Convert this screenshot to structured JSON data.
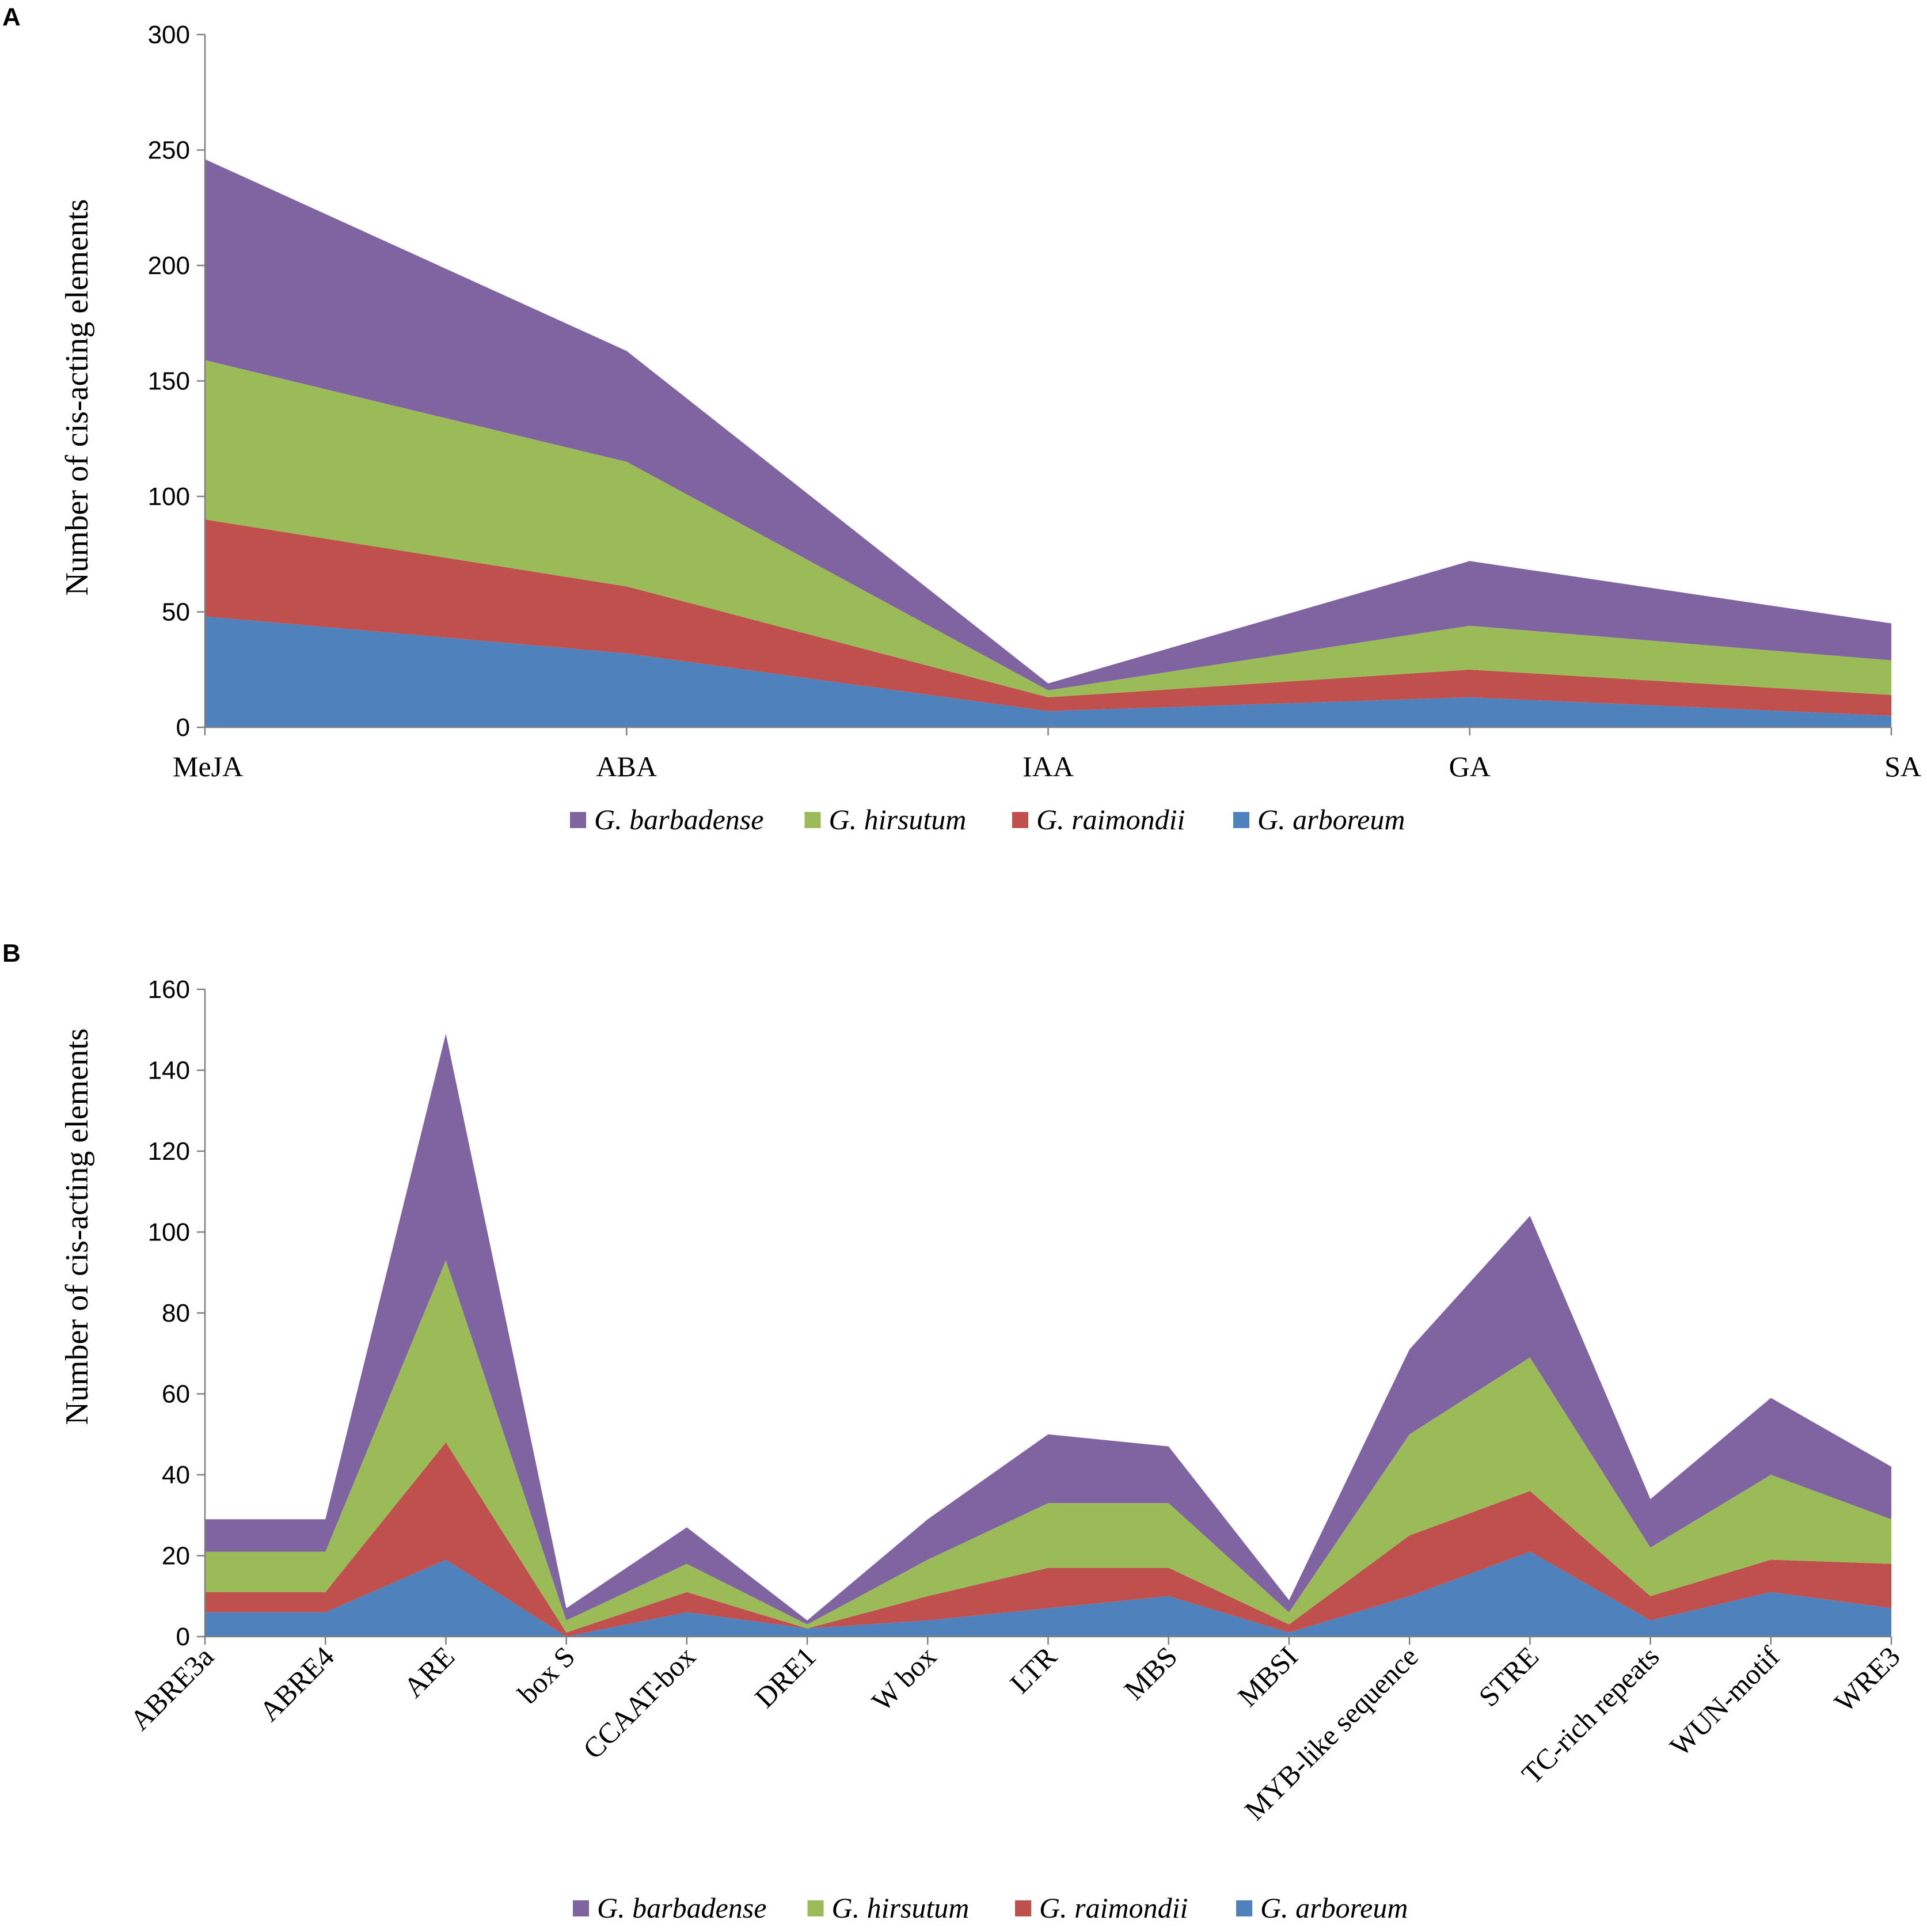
{
  "colors": {
    "G. barbadense": "#8064a2",
    "G. hirsutum": "#9bbb59",
    "G. raimondii": "#c0504d",
    "G. arboreum": "#4f81bd"
  },
  "legend_order": [
    "G. barbadense",
    "G. hirsutum",
    "G. raimondii",
    "G. arboreum"
  ],
  "chart_data": [
    {
      "panel": "A",
      "type": "area",
      "stacked": true,
      "ylabel": "Number of cis-acting elements",
      "xlabel": "",
      "ylim": [
        0,
        300
      ],
      "yticks": [
        0,
        50,
        100,
        150,
        200,
        250,
        300
      ],
      "ytick_labels": [
        "0",
        "50",
        "100",
        "150",
        "200",
        "250",
        "300"
      ],
      "categories": [
        "MeJA",
        "ABA",
        "IAA",
        "GA",
        "SA"
      ],
      "series": [
        {
          "name": "G. arboreum",
          "values": [
            48,
            32,
            7,
            13,
            5
          ]
        },
        {
          "name": "G. raimondii",
          "values": [
            42,
            29,
            6,
            12,
            9
          ]
        },
        {
          "name": "G. hirsutum",
          "values": [
            69,
            54,
            3,
            19,
            15
          ]
        },
        {
          "name": "G. barbadense",
          "values": [
            87,
            48,
            3,
            28,
            16
          ]
        }
      ],
      "legend": [
        "G. barbadense",
        "G. hirsutum",
        "G. raimondii",
        "G. arboreum"
      ],
      "legend_position": "bottom"
    },
    {
      "panel": "B",
      "type": "area",
      "stacked": true,
      "ylabel": "Number of cis-acting elements",
      "xlabel": "",
      "ylim": [
        0,
        160
      ],
      "yticks": [
        0,
        20,
        40,
        60,
        80,
        100,
        120,
        140,
        160
      ],
      "ytick_labels": [
        "0",
        "20",
        "40",
        "60",
        "80",
        "100",
        "120",
        "140",
        "160"
      ],
      "categories": [
        "ABRE3a",
        "ABRE4",
        "ARE",
        "box S",
        "CCAAT-box",
        "DRE1",
        "W box",
        "LTR",
        "MBS",
        "MBSI",
        "MYB-like sequence",
        "STRE",
        "TC-rich repeats",
        "WUN-motif",
        "WRE3"
      ],
      "series": [
        {
          "name": "G. arboreum",
          "values": [
            6,
            6,
            19,
            0,
            6,
            2,
            4,
            7,
            10,
            1,
            10,
            21,
            4,
            11,
            7
          ]
        },
        {
          "name": "G. raimondii",
          "values": [
            5,
            5,
            29,
            1,
            5,
            0,
            6,
            10,
            7,
            2,
            15,
            15,
            6,
            8,
            11
          ]
        },
        {
          "name": "G. hirsutum",
          "values": [
            10,
            10,
            45,
            3,
            7,
            1,
            9,
            16,
            16,
            3,
            25,
            33,
            12,
            21,
            11
          ]
        },
        {
          "name": "G. barbadense",
          "values": [
            8,
            8,
            56,
            3,
            9,
            1,
            10,
            17,
            14,
            3,
            21,
            35,
            12,
            19,
            13
          ]
        }
      ],
      "legend": [
        "G. barbadense",
        "G. hirsutum",
        "G. raimondii",
        "G. arboreum"
      ],
      "legend_position": "bottom"
    }
  ]
}
